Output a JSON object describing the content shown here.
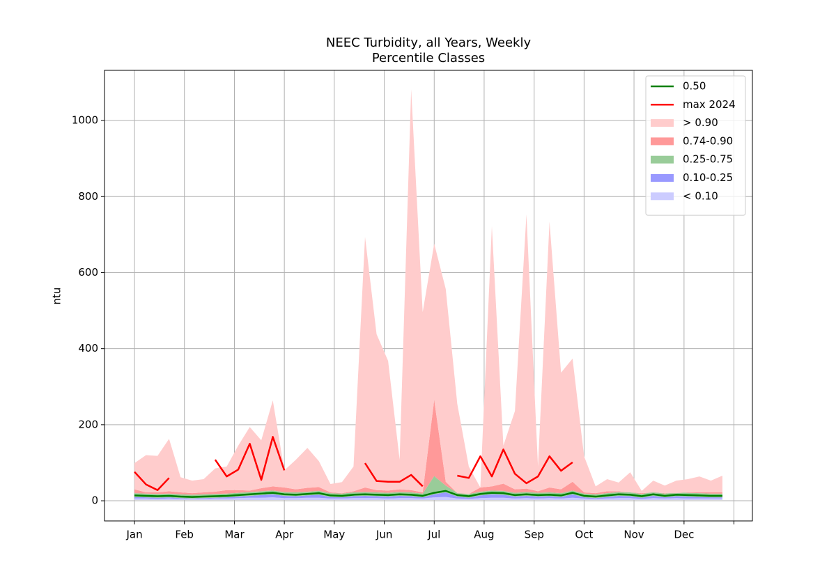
{
  "chart_data": {
    "type": "percentile-bands",
    "title": "NEEC Turbidity, all Years, Weekly",
    "subtitle": "Percentile Classes",
    "y_label": "ntu",
    "x": [
      1,
      2,
      3,
      4,
      5,
      6,
      7,
      8,
      9,
      10,
      11,
      12,
      13,
      14,
      15,
      16,
      17,
      18,
      19,
      20,
      21,
      22,
      23,
      24,
      25,
      26,
      27,
      28,
      29,
      30,
      31,
      32,
      33,
      34,
      35,
      36,
      37,
      38,
      39,
      40,
      41,
      42,
      43,
      44,
      45,
      46,
      47,
      48,
      49,
      50,
      51,
      52
    ],
    "xlim": [
      -1.6,
      54.6
    ],
    "xticks": [
      {
        "value": 1,
        "label": "Jan"
      },
      {
        "value": 5.33,
        "label": "Feb"
      },
      {
        "value": 9.67,
        "label": "Mar"
      },
      {
        "value": 14,
        "label": "Apr"
      },
      {
        "value": 18.33,
        "label": "May"
      },
      {
        "value": 22.67,
        "label": "Jun"
      },
      {
        "value": 27,
        "label": "Jul"
      },
      {
        "value": 31.33,
        "label": "Aug"
      },
      {
        "value": 35.67,
        "label": "Sep"
      },
      {
        "value": 40,
        "label": "Oct"
      },
      {
        "value": 44.33,
        "label": "Nov"
      },
      {
        "value": 48.67,
        "label": "Dec"
      },
      {
        "value": 53,
        "label": null
      }
    ],
    "ylim": [
      -53,
      1132
    ],
    "yticks": [
      0,
      200,
      400,
      600,
      800,
      1000
    ],
    "grid": true,
    "legend": "upper right",
    "series": [
      {
        "name": "0.50",
        "color": "#008000",
        "values": [
          14,
          13,
          12,
          13,
          11,
          10,
          11,
          12,
          13,
          15,
          17,
          19,
          21,
          17,
          16,
          18,
          20,
          14,
          13,
          16,
          17,
          16,
          15,
          17,
          16,
          13,
          21,
          26,
          15,
          12,
          18,
          21,
          20,
          15,
          17,
          15,
          16,
          14,
          21,
          13,
          11,
          14,
          17,
          16,
          12,
          17,
          13,
          16,
          15,
          14,
          13,
          13
        ]
      },
      {
        "name": "max 2024",
        "color": "#ff0000",
        "values": [
          76,
          43,
          28,
          60,
          null,
          null,
          null,
          108,
          64,
          82,
          150,
          55,
          168,
          80,
          null,
          null,
          null,
          null,
          null,
          null,
          99,
          52,
          50,
          50,
          68,
          38,
          null,
          null,
          66,
          60,
          117,
          64,
          135,
          71,
          46,
          64,
          117,
          79,
          101,
          null,
          null,
          null,
          null,
          null,
          null,
          null,
          null,
          null,
          null,
          null,
          null,
          null
        ]
      }
    ],
    "bands": [
      {
        "name": "> 0.90",
        "color": "#ffcccc",
        "values": [
          99,
          120,
          118,
          163,
          62,
          53,
          57,
          85,
          90,
          145,
          194,
          159,
          264,
          80,
          108,
          139,
          104,
          44,
          49,
          90,
          694,
          438,
          368,
          108,
          1082,
          496,
          676,
          557,
          255,
          90,
          35,
          722,
          145,
          236,
          753,
          90,
          734,
          337,
          374,
          117,
          38,
          57,
          48,
          75,
          26,
          53,
          40,
          53,
          57,
          64,
          53,
          66
        ]
      },
      {
        "name": "0.74-0.90",
        "color": "#ff9999",
        "values": [
          30,
          22,
          22,
          25,
          22,
          20,
          22,
          24,
          28,
          28,
          27,
          33,
          38,
          35,
          30,
          34,
          36,
          22,
          20,
          25,
          35,
          28,
          27,
          30,
          28,
          22,
          265,
          50,
          20,
          18,
          35,
          38,
          45,
          30,
          32,
          25,
          35,
          30,
          50,
          22,
          20,
          25,
          25,
          22,
          20,
          22,
          20,
          20,
          22,
          22,
          22,
          22
        ]
      },
      {
        "name": "0.25-0.75",
        "color": "#99cc99",
        "values": [
          20,
          19,
          18,
          19,
          17,
          16,
          17,
          18,
          19,
          21,
          23,
          25,
          27,
          23,
          22,
          24,
          26,
          20,
          19,
          22,
          23,
          22,
          21,
          23,
          22,
          19,
          65,
          40,
          21,
          18,
          24,
          27,
          26,
          21,
          23,
          21,
          22,
          20,
          27,
          19,
          17,
          20,
          23,
          22,
          18,
          23,
          19,
          22,
          21,
          20,
          19,
          19
        ]
      },
      {
        "name": "0.10-0.25",
        "color": "#9999ff",
        "values": [
          10,
          9,
          8,
          9,
          7,
          6,
          7,
          8,
          9,
          11,
          13,
          15,
          17,
          13,
          12,
          14,
          16,
          10,
          9,
          12,
          13,
          12,
          11,
          13,
          12,
          9,
          17,
          22,
          11,
          8,
          14,
          17,
          16,
          11,
          13,
          11,
          12,
          10,
          17,
          9,
          7,
          10,
          13,
          12,
          8,
          13,
          9,
          12,
          11,
          10,
          9,
          9
        ]
      },
      {
        "name": "< 0.10",
        "color": "#ccccff",
        "values": [
          6,
          6,
          5,
          6,
          5,
          5,
          5,
          6,
          6,
          7,
          8,
          8,
          9,
          7,
          7,
          8,
          8,
          6,
          6,
          7,
          7,
          7,
          6,
          7,
          7,
          6,
          9,
          10,
          6,
          5,
          7,
          8,
          8,
          6,
          7,
          6,
          7,
          6,
          8,
          6,
          5,
          6,
          7,
          7,
          5,
          7,
          6,
          7,
          6,
          6,
          6,
          6
        ],
        "lower": [
          2,
          2,
          2,
          2,
          2,
          2,
          2,
          2,
          2,
          2,
          2,
          2,
          2,
          2,
          2,
          2,
          2,
          2,
          2,
          2,
          2,
          2,
          2,
          2,
          2,
          2,
          2,
          2,
          2,
          2,
          2,
          2,
          2,
          2,
          2,
          2,
          2,
          2,
          2,
          2,
          2,
          2,
          2,
          2,
          2,
          2,
          2,
          2,
          2,
          2,
          2,
          2
        ]
      }
    ]
  }
}
